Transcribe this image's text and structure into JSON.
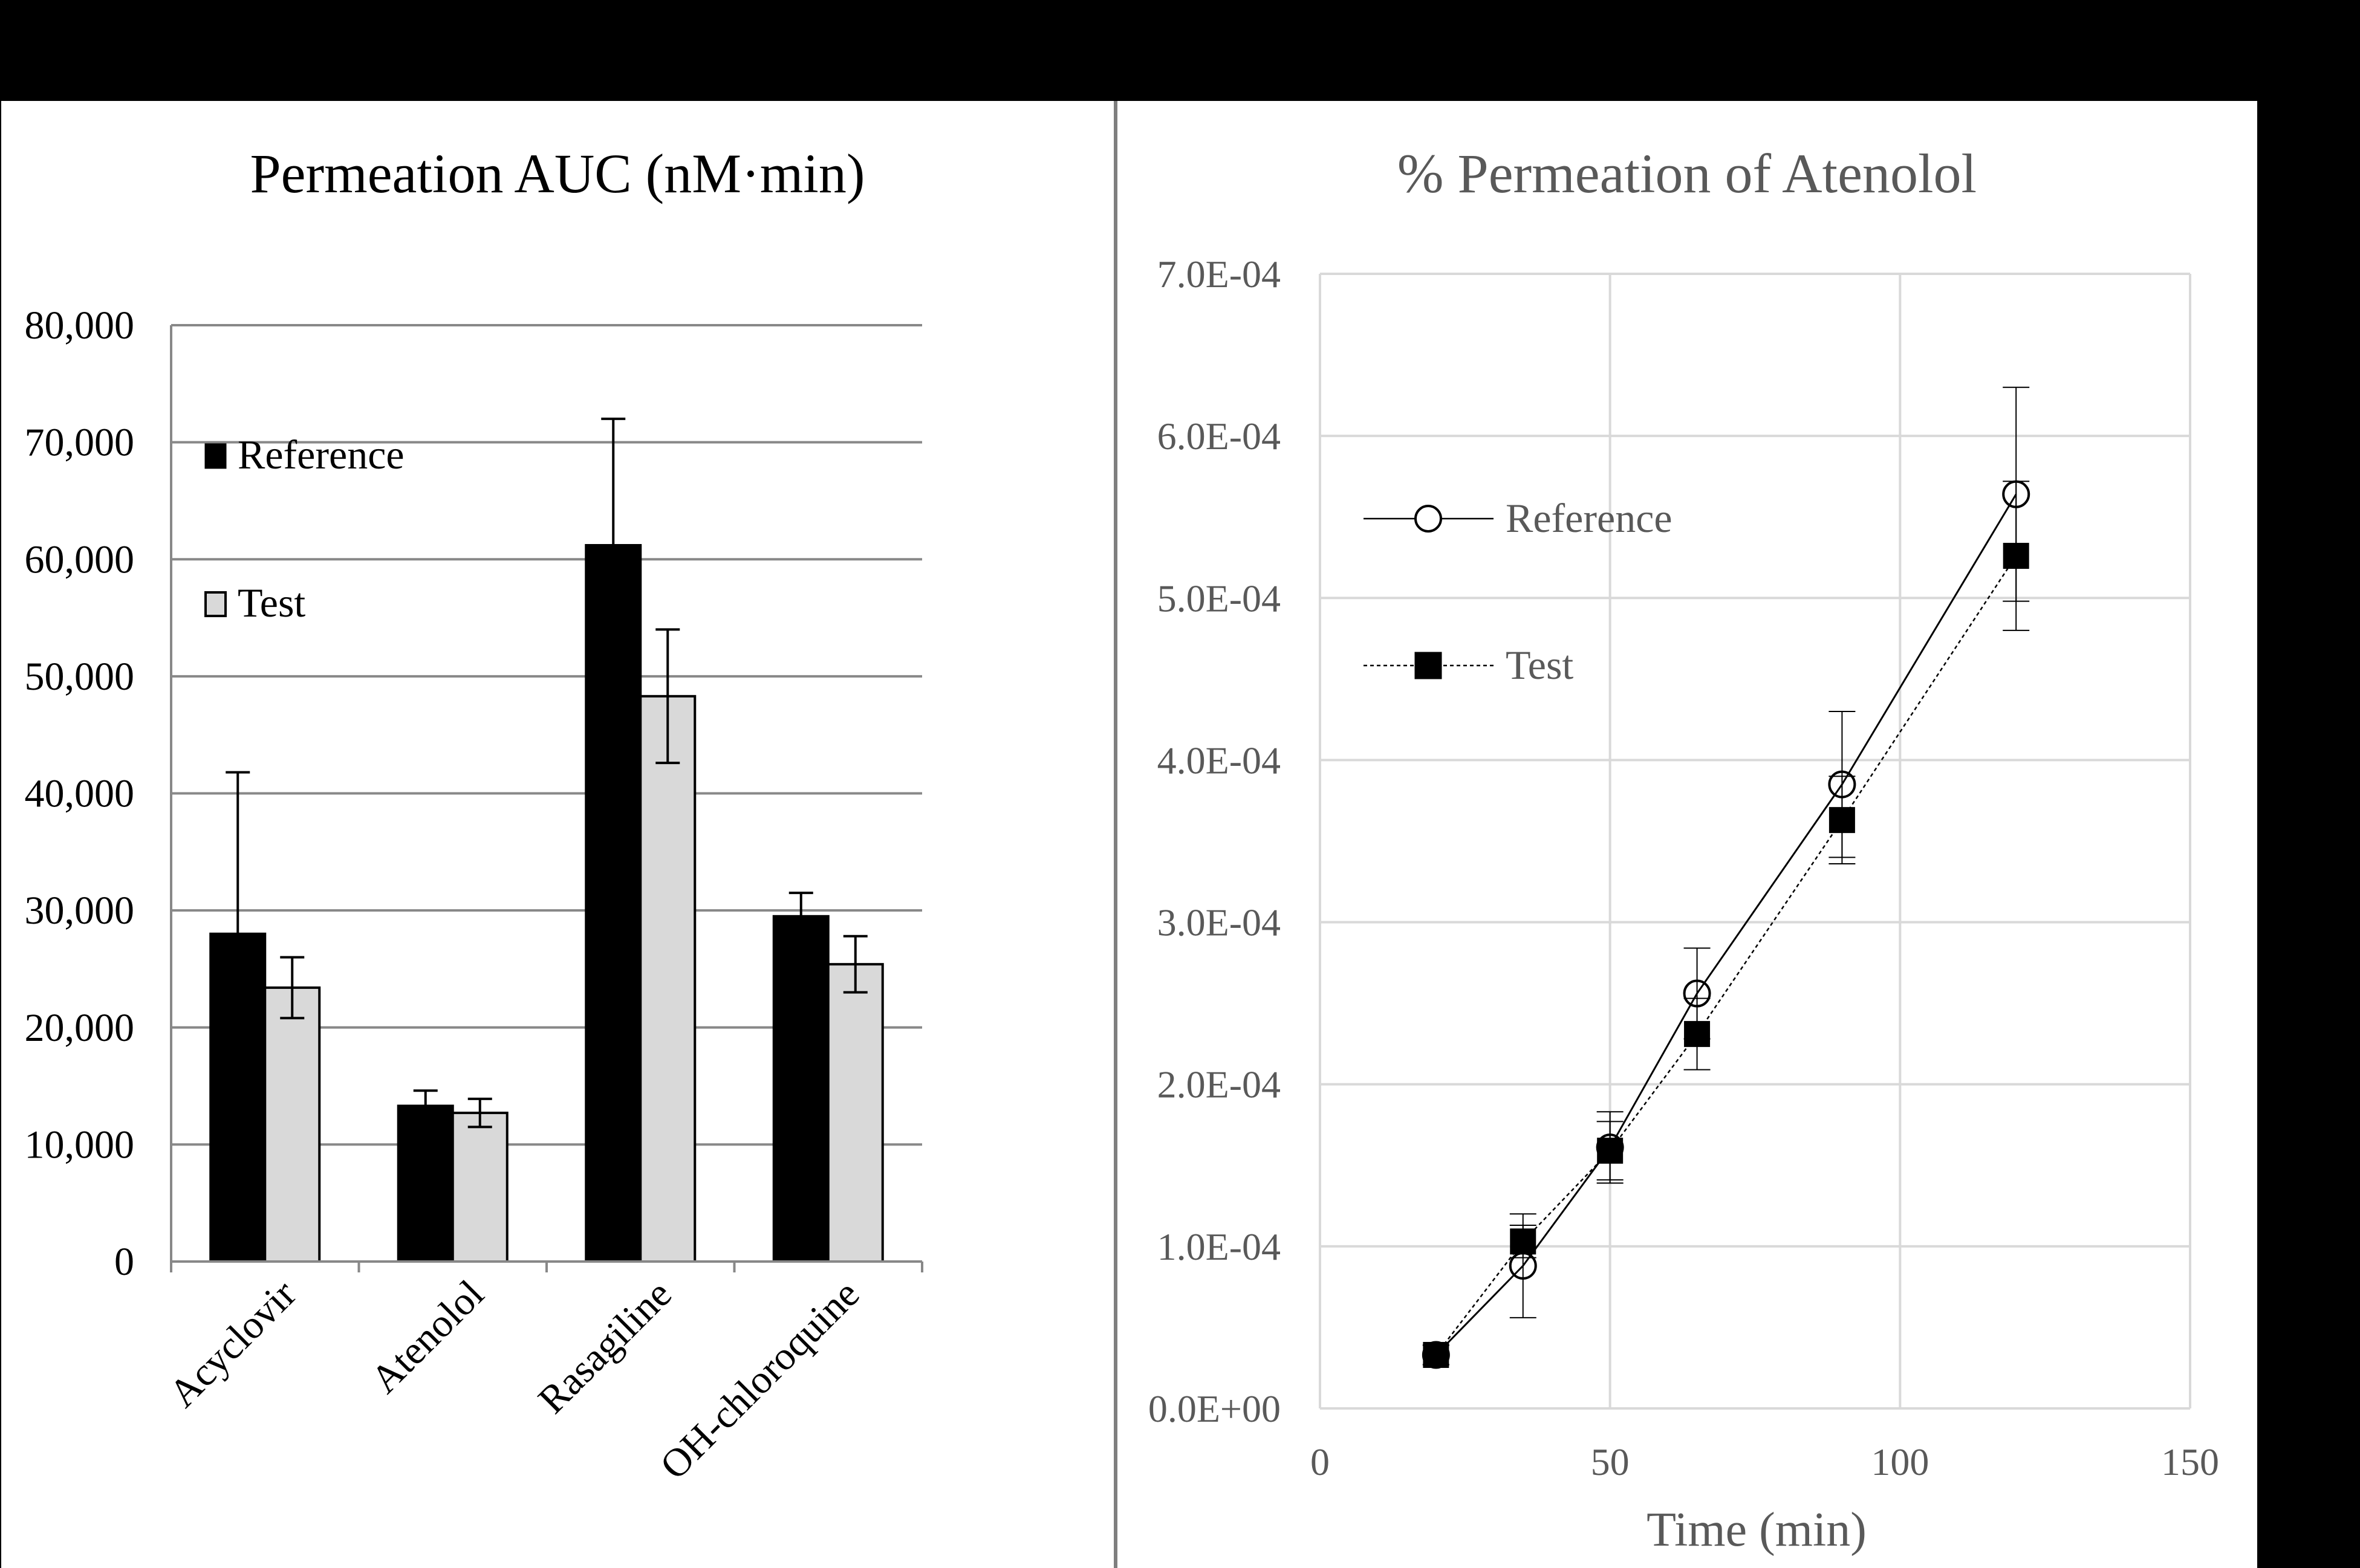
{
  "colors": {
    "background": "#000000",
    "panel_background": "#ffffff",
    "panel_border": "#7f7f7f",
    "reference_bar": "#000000",
    "test_bar": "#d9d9d9",
    "gridline": "#888888",
    "light_gridline": "#d9d9d9",
    "title_dark": "#000000",
    "title_gray": "#595959",
    "axis_text_gray": "#595959"
  },
  "chart_data": [
    {
      "type": "bar",
      "title": "Permeation AUC (nM·min)",
      "categories": [
        "Acyclovir",
        "Atenolol",
        "Rasagiline",
        "OH-chloroquine"
      ],
      "yticks": [
        "0",
        "10,000",
        "20,000",
        "30,000",
        "40,000",
        "50,000",
        "60,000",
        "70,000",
        "80,000"
      ],
      "ylim": [
        0,
        80000
      ],
      "grid": true,
      "legend_position": "top-left",
      "series": [
        {
          "name": "Reference",
          "values": [
            28000,
            13300,
            61200,
            29500
          ],
          "error": [
            13800,
            1300,
            10800,
            2000
          ],
          "color": "#000000"
        },
        {
          "name": "Test",
          "values": [
            23400,
            12700,
            48300,
            25400
          ],
          "error": [
            2600,
            1200,
            5700,
            2400
          ],
          "color": "#d9d9d9"
        }
      ]
    },
    {
      "type": "line",
      "title": "% Permeation of Atenolol",
      "xlabel": "Time (min)",
      "xlim": [
        0,
        150
      ],
      "ylim": [
        0,
        0.0007
      ],
      "xticks": [
        "0",
        "50",
        "100",
        "150"
      ],
      "yticks": [
        "0.0E+00",
        "1.0E-04",
        "2.0E-04",
        "3.0E-04",
        "4.0E-04",
        "5.0E-04",
        "6.0E-04",
        "7.0E-04"
      ],
      "grid": true,
      "legend_position": "top-left",
      "x": [
        20,
        35,
        50,
        65,
        90,
        120
      ],
      "series": [
        {
          "name": "Reference",
          "marker": "open-circle",
          "line": "solid",
          "values": [
            3.3e-05,
            8.8e-05,
            0.000161,
            0.000256,
            0.000385,
            0.000564
          ],
          "error": [
            6e-06,
            3.2e-05,
            2.2e-05,
            2.8e-05,
            4.5e-05,
            6.6e-05
          ]
        },
        {
          "name": "Test",
          "marker": "filled-square",
          "line": "dotted",
          "values": [
            3.3e-05,
            0.000103,
            0.000159,
            0.000231,
            0.000363,
            0.000526
          ],
          "error": [
            6e-06,
            1e-05,
            1.8e-05,
            2.2e-05,
            2.7e-05,
            4.6e-05
          ]
        }
      ]
    }
  ]
}
